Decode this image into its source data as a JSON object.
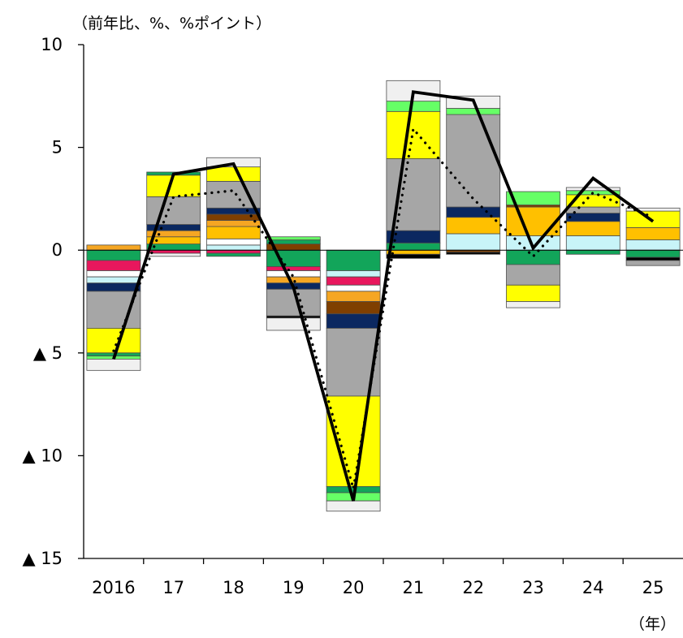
{
  "chart_data": {
    "type": "bar",
    "title": "",
    "y_unit_label": "（前年比、%、%ポイント）",
    "x_unit_label": "（年）",
    "categories": [
      "2016",
      "17",
      "18",
      "19",
      "20",
      "21",
      "22",
      "23",
      "24",
      "25"
    ],
    "ylim": [
      -15,
      10
    ],
    "y_ticks": [
      {
        "value": 10,
        "label": "10"
      },
      {
        "value": 5,
        "label": "5"
      },
      {
        "value": 0,
        "label": "0"
      },
      {
        "value": -5,
        "label": "▲ 5"
      },
      {
        "value": -10,
        "label": "▲ 10"
      },
      {
        "value": -15,
        "label": "▲ 15"
      }
    ],
    "grid": false,
    "stacked_components": [
      [
        {
          "value": 0.25,
          "color": "#f5a623"
        },
        {
          "value": -0.5,
          "color": "#12a55a"
        },
        {
          "value": -0.5,
          "color": "#e8175d"
        },
        {
          "value": -0.3,
          "color": "#ffffff"
        },
        {
          "value": -0.3,
          "color": "#c8f4f8"
        },
        {
          "value": -0.4,
          "color": "#0b2860"
        },
        {
          "value": -1.8,
          "color": "#a6a6a6"
        },
        {
          "value": -1.2,
          "color": "#ffff00"
        },
        {
          "value": -0.15,
          "color": "#12a55a"
        },
        {
          "value": -0.15,
          "color": "#66ff66"
        },
        {
          "value": -0.55,
          "color": "#f0f0f0"
        }
      ],
      [
        {
          "value": 0.3,
          "color": "#12a55a"
        },
        {
          "value": 0.35,
          "color": "#ffc000"
        },
        {
          "value": 0.3,
          "color": "#f5a623"
        },
        {
          "value": 0.3,
          "color": "#0b2860"
        },
        {
          "value": 1.35,
          "color": "#a6a6a6"
        },
        {
          "value": 1.05,
          "color": "#ffff00"
        },
        {
          "value": 0.15,
          "color": "#12a55a"
        },
        {
          "value": -0.15,
          "color": "#e8175d"
        },
        {
          "value": -0.15,
          "color": "#f0f0f0"
        }
      ],
      [
        {
          "value": 0.25,
          "color": "#c8f4f8"
        },
        {
          "value": 0.3,
          "color": "#ffffff"
        },
        {
          "value": 0.6,
          "color": "#ffc000"
        },
        {
          "value": 0.3,
          "color": "#f5a623"
        },
        {
          "value": 0.3,
          "color": "#7f3f00"
        },
        {
          "value": 0.3,
          "color": "#0b2860"
        },
        {
          "value": 1.3,
          "color": "#a6a6a6"
        },
        {
          "value": 0.7,
          "color": "#ffff00"
        },
        {
          "value": 0.45,
          "color": "#f0f0f0"
        },
        {
          "value": -0.15,
          "color": "#e8175d"
        },
        {
          "value": -0.15,
          "color": "#12a55a"
        }
      ],
      [
        {
          "value": 0.3,
          "color": "#7f3f00"
        },
        {
          "value": 0.2,
          "color": "#12a55a"
        },
        {
          "value": 0.15,
          "color": "#66ff66"
        },
        {
          "value": -0.8,
          "color": "#12a55a"
        },
        {
          "value": -0.2,
          "color": "#e8175d"
        },
        {
          "value": -0.3,
          "color": "#ffffff"
        },
        {
          "value": -0.3,
          "color": "#f5a623"
        },
        {
          "value": -0.3,
          "color": "#0b2860"
        },
        {
          "value": -1.3,
          "color": "#a6a6a6"
        },
        {
          "value": -0.1,
          "color": "#000000"
        },
        {
          "value": -0.6,
          "color": "#f0f0f0"
        }
      ],
      [
        {
          "value": -1.0,
          "color": "#12a55a"
        },
        {
          "value": -0.3,
          "color": "#c8f4f8"
        },
        {
          "value": -0.4,
          "color": "#e8175d"
        },
        {
          "value": -0.3,
          "color": "#ffffff"
        },
        {
          "value": -0.5,
          "color": "#f5a623"
        },
        {
          "value": -0.6,
          "color": "#7f3f00"
        },
        {
          "value": -0.7,
          "color": "#0b2860"
        },
        {
          "value": -3.3,
          "color": "#a6a6a6"
        },
        {
          "value": -4.4,
          "color": "#ffff00"
        },
        {
          "value": -0.3,
          "color": "#12a55a"
        },
        {
          "value": -0.4,
          "color": "#66ff66"
        },
        {
          "value": -0.5,
          "color": "#f0f0f0"
        }
      ],
      [
        {
          "value": 0.35,
          "color": "#12a55a"
        },
        {
          "value": 0.6,
          "color": "#0b2860"
        },
        {
          "value": 3.5,
          "color": "#a6a6a6"
        },
        {
          "value": 2.3,
          "color": "#ffff00"
        },
        {
          "value": 0.5,
          "color": "#66ff66"
        },
        {
          "value": 1.0,
          "color": "#f0f0f0"
        },
        {
          "value": -0.2,
          "color": "#ffc000"
        },
        {
          "value": -0.2,
          "color": "#000000"
        }
      ],
      [
        {
          "value": 0.8,
          "color": "#c8f4f8"
        },
        {
          "value": 0.8,
          "color": "#ffc000"
        },
        {
          "value": 0.5,
          "color": "#0b2860"
        },
        {
          "value": 4.5,
          "color": "#a6a6a6"
        },
        {
          "value": 0.3,
          "color": "#66ff66"
        },
        {
          "value": 0.6,
          "color": "#f0f0f0"
        },
        {
          "value": -0.1,
          "color": "#7f3f00"
        },
        {
          "value": -0.1,
          "color": "#000000"
        }
      ],
      [
        {
          "value": 0.7,
          "color": "#c8f4f8"
        },
        {
          "value": 1.4,
          "color": "#ffc000"
        },
        {
          "value": 0.1,
          "color": "#7f3f00"
        },
        {
          "value": 0.65,
          "color": "#66ff66"
        },
        {
          "value": -0.7,
          "color": "#12a55a"
        },
        {
          "value": -1.0,
          "color": "#a6a6a6"
        },
        {
          "value": -0.8,
          "color": "#ffff00"
        },
        {
          "value": -0.3,
          "color": "#f0f0f0"
        }
      ],
      [
        {
          "value": 0.7,
          "color": "#c8f4f8"
        },
        {
          "value": 0.7,
          "color": "#ffc000"
        },
        {
          "value": 0.4,
          "color": "#0b2860"
        },
        {
          "value": 0.3,
          "color": "#a6a6a6"
        },
        {
          "value": 0.6,
          "color": "#ffff00"
        },
        {
          "value": 0.2,
          "color": "#66ff66"
        },
        {
          "value": 0.15,
          "color": "#f0f0f0"
        },
        {
          "value": -0.2,
          "color": "#12a55a"
        }
      ],
      [
        {
          "value": 0.5,
          "color": "#c8f4f8"
        },
        {
          "value": 0.6,
          "color": "#ffc000"
        },
        {
          "value": 0.8,
          "color": "#ffff00"
        },
        {
          "value": 0.15,
          "color": "#f0f0f0"
        },
        {
          "value": -0.35,
          "color": "#12a55a"
        },
        {
          "value": -0.15,
          "color": "#000000"
        },
        {
          "value": -0.25,
          "color": "#a6a6a6"
        }
      ]
    ],
    "series": [
      {
        "style": "solid",
        "values": [
          -5.3,
          3.7,
          4.2,
          -1.8,
          -12.2,
          7.7,
          7.3,
          0.1,
          3.5,
          1.4
        ]
      },
      {
        "style": "dotted",
        "values": [
          -4.9,
          2.6,
          2.9,
          -1.3,
          -11.6,
          5.9,
          2.5,
          -0.3,
          2.8,
          1.6
        ]
      }
    ]
  }
}
